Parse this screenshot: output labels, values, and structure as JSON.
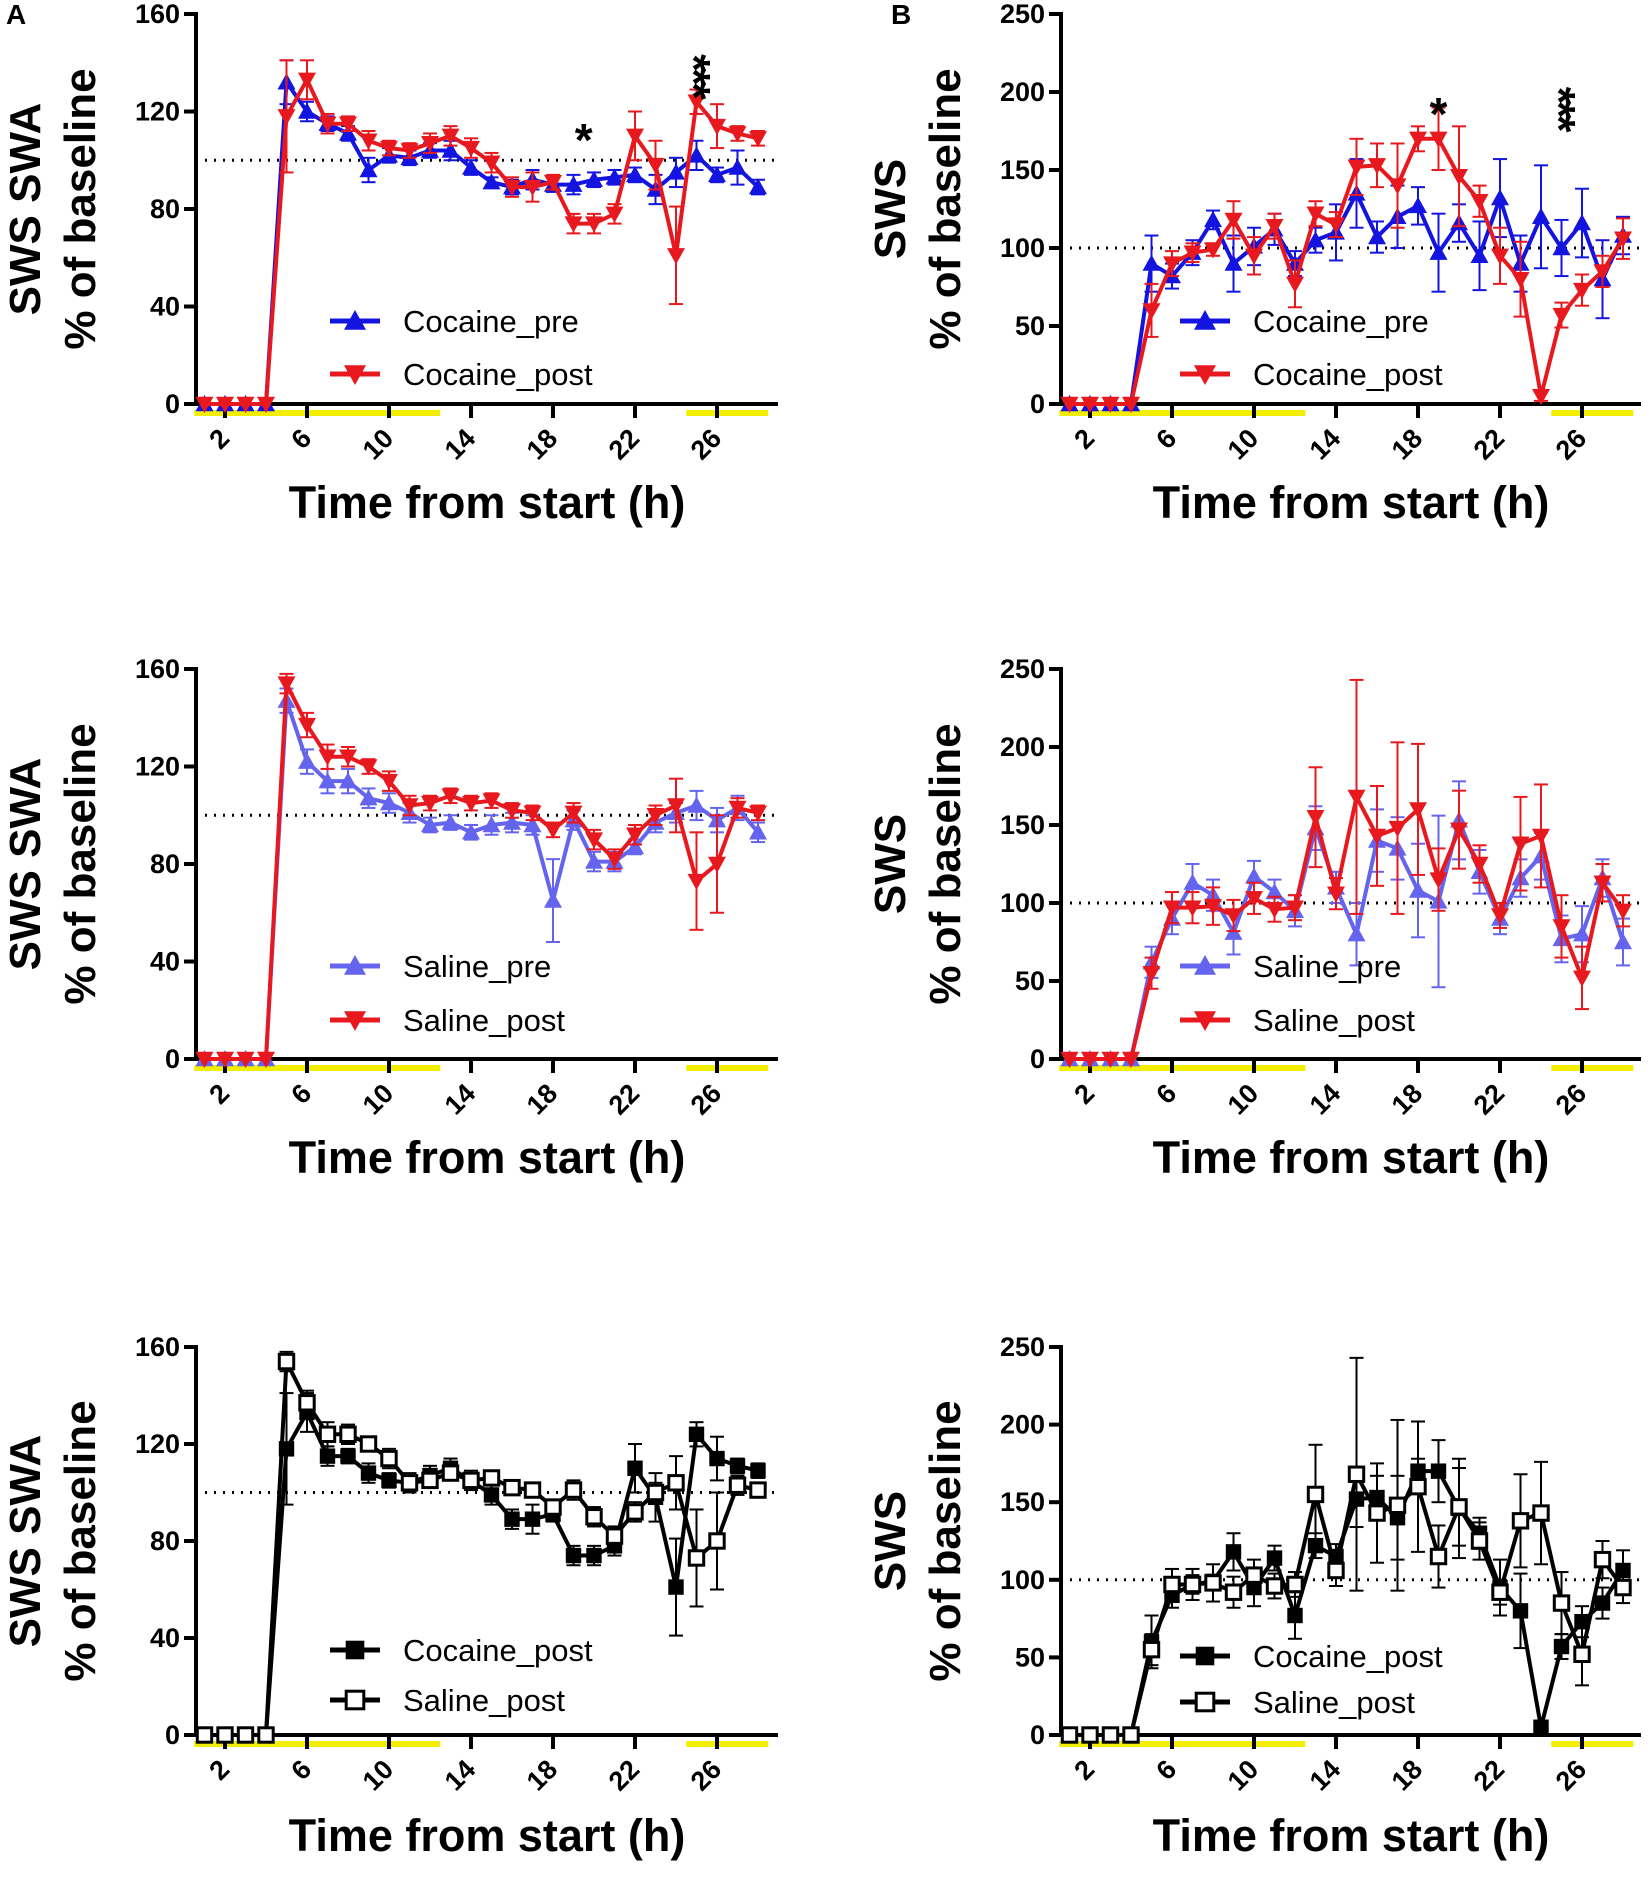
{
  "chart_data": [
    {
      "type": "line",
      "letter": "A",
      "xlabel": "Time from start (h)",
      "ylabel": [
        "SWS SWA",
        "% of baseline"
      ],
      "ylim": [
        0,
        160
      ],
      "yticks": [
        0,
        40,
        80,
        120,
        160
      ],
      "xticks": [
        2,
        6,
        10,
        14,
        18,
        22,
        26
      ],
      "reference_line": 100,
      "light_bars_hours": [
        [
          0.5,
          12.5
        ],
        [
          24.5,
          28.5
        ]
      ],
      "annotations": [
        {
          "text": "*",
          "hour": 19.5,
          "value": 114
        },
        {
          "text": "***",
          "hour": 24,
          "value": 135
        }
      ],
      "legend": "center-left",
      "series": [
        {
          "name": "Cocaine_pre",
          "color": "#1414e0",
          "marker": "triangle-up",
          "filled": true,
          "values": [
            0,
            0,
            0,
            0,
            132,
            120,
            115,
            111,
            96,
            102,
            101,
            104,
            104,
            97,
            91,
            89,
            92,
            90,
            90,
            92,
            93,
            94,
            88,
            95,
            102,
            94,
            97,
            89
          ],
          "err": [
            0,
            0,
            0,
            0,
            9,
            4,
            3,
            3,
            5,
            3,
            3,
            3,
            4,
            3,
            2,
            3,
            4,
            3,
            4,
            3,
            3,
            3,
            6,
            6,
            6,
            3,
            7,
            3
          ]
        },
        {
          "name": "Cocaine_post",
          "color": "#e8191e",
          "marker": "triangle-down",
          "filled": true,
          "values": [
            0,
            0,
            0,
            0,
            118,
            133,
            115,
            115,
            108,
            105,
            104,
            107,
            110,
            105,
            99,
            89,
            89,
            91,
            74,
            74,
            78,
            110,
            98,
            61,
            124,
            114,
            111,
            109
          ],
          "err": [
            0,
            0,
            0,
            0,
            23,
            8,
            4,
            3,
            4,
            3,
            3,
            4,
            4,
            4,
            4,
            4,
            6,
            3,
            4,
            4,
            4,
            10,
            10,
            20,
            5,
            9,
            3,
            3
          ]
        }
      ]
    },
    {
      "type": "line",
      "letter": "B",
      "xlabel": "Time from start (h)",
      "ylabel": [
        "SWS",
        "% of baseline"
      ],
      "ylim": [
        0,
        250
      ],
      "yticks": [
        0,
        50,
        100,
        150,
        200,
        250
      ],
      "xticks": [
        2,
        6,
        10,
        14,
        18,
        22,
        26
      ],
      "reference_line": 100,
      "light_bars_hours": [
        [
          0.5,
          12.5
        ],
        [
          24.5,
          28.5
        ]
      ],
      "annotations": [
        {
          "text": "*",
          "hour": 19,
          "value": 195
        },
        {
          "text": "***",
          "hour": 24,
          "value": 190
        }
      ],
      "legend": "center-left",
      "series": [
        {
          "name": "Cocaine_pre",
          "color": "#1414e0",
          "marker": "triangle-up",
          "filled": true,
          "values": [
            0,
            0,
            0,
            0,
            90,
            82,
            97,
            118,
            90,
            101,
            112,
            90,
            105,
            110,
            135,
            107,
            120,
            127,
            97,
            116,
            95,
            132,
            90,
            120,
            100,
            116,
            80,
            108
          ],
          "err": [
            0,
            0,
            0,
            0,
            18,
            8,
            8,
            6,
            18,
            12,
            10,
            8,
            8,
            18,
            22,
            10,
            20,
            12,
            25,
            12,
            22,
            25,
            18,
            33,
            18,
            22,
            25,
            12
          ]
        },
        {
          "name": "Cocaine_post",
          "color": "#e8191e",
          "marker": "triangle-down",
          "filled": true,
          "values": [
            0,
            0,
            0,
            0,
            60,
            90,
            97,
            99,
            118,
            95,
            114,
            77,
            122,
            115,
            152,
            153,
            140,
            170,
            170,
            146,
            130,
            95,
            80,
            5,
            57,
            73,
            85,
            106
          ],
          "err": [
            0,
            0,
            0,
            0,
            17,
            8,
            6,
            4,
            12,
            12,
            8,
            15,
            8,
            8,
            18,
            14,
            27,
            8,
            20,
            32,
            10,
            18,
            24,
            3,
            8,
            10,
            10,
            13
          ]
        }
      ]
    },
    {
      "type": "line",
      "letter": "",
      "xlabel": "Time from start (h)",
      "ylabel": [
        "SWS SWA",
        "% of baseline"
      ],
      "ylim": [
        0,
        160
      ],
      "yticks": [
        0,
        40,
        80,
        120,
        160
      ],
      "xticks": [
        2,
        6,
        10,
        14,
        18,
        22,
        26
      ],
      "reference_line": 100,
      "light_bars_hours": [
        [
          0.5,
          12.5
        ],
        [
          24.5,
          28.5
        ]
      ],
      "annotations": [],
      "legend": "center-left",
      "series": [
        {
          "name": "Saline_pre",
          "color": "#6464ee",
          "marker": "triangle-up",
          "filled": true,
          "values": [
            0,
            0,
            0,
            0,
            147,
            122,
            114,
            114,
            107,
            105,
            101,
            96,
            97,
            93,
            96,
            97,
            96,
            65,
            98,
            81,
            81,
            87,
            97,
            101,
            104,
            98,
            103,
            93
          ],
          "err": [
            0,
            0,
            0,
            0,
            5,
            5,
            5,
            5,
            4,
            4,
            4,
            3,
            3,
            3,
            4,
            4,
            4,
            17,
            4,
            4,
            4,
            3,
            4,
            4,
            6,
            5,
            5,
            4
          ]
        },
        {
          "name": "Saline_post",
          "color": "#e8191e",
          "marker": "triangle-down",
          "filled": true,
          "values": [
            0,
            0,
            0,
            0,
            154,
            137,
            124,
            124,
            120,
            114,
            104,
            105,
            108,
            105,
            106,
            102,
            101,
            94,
            101,
            90,
            82,
            92,
            100,
            104,
            73,
            80,
            103,
            101
          ],
          "err": [
            0,
            0,
            0,
            0,
            4,
            5,
            5,
            4,
            3,
            4,
            4,
            3,
            3,
            3,
            3,
            3,
            3,
            3,
            4,
            4,
            4,
            4,
            4,
            11,
            20,
            20,
            4,
            3
          ]
        }
      ]
    },
    {
      "type": "line",
      "letter": "",
      "xlabel": "Time from start (h)",
      "ylabel": [
        "SWS",
        "% of baseline"
      ],
      "ylim": [
        0,
        250
      ],
      "yticks": [
        0,
        50,
        100,
        150,
        200,
        250
      ],
      "xticks": [
        2,
        6,
        10,
        14,
        18,
        22,
        26
      ],
      "reference_line": 100,
      "light_bars_hours": [
        [
          0.5,
          12.5
        ],
        [
          24.5,
          28.5
        ]
      ],
      "annotations": [],
      "legend": "center-left",
      "series": [
        {
          "name": "Saline_pre",
          "color": "#6464ee",
          "marker": "triangle-up",
          "filled": true,
          "values": [
            0,
            0,
            0,
            0,
            62,
            90,
            113,
            105,
            81,
            117,
            107,
            95,
            148,
            110,
            80,
            140,
            135,
            108,
            101,
            153,
            120,
            90,
            116,
            130,
            77,
            80,
            116,
            75
          ],
          "err": [
            0,
            0,
            0,
            0,
            10,
            10,
            12,
            10,
            14,
            10,
            8,
            10,
            14,
            10,
            20,
            20,
            20,
            30,
            55,
            25,
            14,
            10,
            12,
            15,
            15,
            18,
            12,
            15
          ]
        },
        {
          "name": "Saline_post",
          "color": "#e8191e",
          "marker": "triangle-down",
          "filled": true,
          "values": [
            0,
            0,
            0,
            0,
            55,
            97,
            97,
            98,
            92,
            103,
            96,
            97,
            155,
            106,
            168,
            143,
            148,
            160,
            115,
            147,
            125,
            92,
            138,
            143,
            85,
            52,
            113,
            95
          ],
          "err": [
            0,
            0,
            0,
            0,
            10,
            10,
            10,
            12,
            10,
            10,
            8,
            8,
            32,
            10,
            75,
            32,
            55,
            42,
            20,
            25,
            12,
            8,
            30,
            33,
            20,
            20,
            12,
            10
          ]
        }
      ]
    },
    {
      "type": "line",
      "letter": "",
      "xlabel": "Time from start (h)",
      "ylabel": [
        "SWS SWA",
        "% of baseline"
      ],
      "ylim": [
        0,
        160
      ],
      "yticks": [
        0,
        40,
        80,
        120,
        160
      ],
      "xticks": [
        2,
        6,
        10,
        14,
        18,
        22,
        26
      ],
      "reference_line": 100,
      "light_bars_hours": [
        [
          0.5,
          12.5
        ],
        [
          24.5,
          28.5
        ]
      ],
      "annotations": [],
      "legend": "center-left",
      "series": [
        {
          "name": "Cocaine_post",
          "color": "#000000",
          "marker": "square",
          "filled": true,
          "values": [
            0,
            0,
            0,
            0,
            118,
            133,
            115,
            115,
            108,
            105,
            104,
            107,
            110,
            105,
            99,
            89,
            89,
            91,
            74,
            74,
            78,
            110,
            98,
            61,
            124,
            114,
            111,
            109
          ],
          "err": [
            0,
            0,
            0,
            0,
            23,
            8,
            4,
            3,
            4,
            3,
            3,
            4,
            4,
            4,
            4,
            4,
            6,
            3,
            4,
            4,
            4,
            10,
            10,
            20,
            5,
            9,
            3,
            3
          ]
        },
        {
          "name": "Saline_post",
          "color": "#000000",
          "marker": "square",
          "filled": false,
          "values": [
            0,
            0,
            0,
            0,
            154,
            137,
            124,
            124,
            120,
            114,
            104,
            105,
            108,
            105,
            106,
            102,
            101,
            94,
            101,
            90,
            82,
            92,
            100,
            104,
            73,
            80,
            103,
            101
          ],
          "err": [
            0,
            0,
            0,
            0,
            4,
            5,
            5,
            4,
            3,
            4,
            4,
            3,
            3,
            3,
            3,
            3,
            3,
            3,
            4,
            4,
            4,
            4,
            4,
            11,
            20,
            20,
            4,
            3
          ]
        }
      ]
    },
    {
      "type": "line",
      "letter": "",
      "xlabel": "Time from start (h)",
      "ylabel": [
        "SWS",
        "% of baseline"
      ],
      "ylim": [
        0,
        250
      ],
      "yticks": [
        0,
        50,
        100,
        150,
        200,
        250
      ],
      "xticks": [
        2,
        6,
        10,
        14,
        18,
        22,
        26
      ],
      "reference_line": 100,
      "light_bars_hours": [
        [
          0.5,
          12.5
        ],
        [
          24.5,
          28.5
        ]
      ],
      "annotations": [],
      "legend": "center-left",
      "series": [
        {
          "name": "Cocaine_post",
          "color": "#000000",
          "marker": "square",
          "filled": true,
          "values": [
            0,
            0,
            0,
            0,
            60,
            90,
            97,
            99,
            118,
            95,
            114,
            77,
            122,
            115,
            152,
            153,
            140,
            170,
            170,
            146,
            130,
            95,
            80,
            5,
            57,
            73,
            85,
            106
          ],
          "err": [
            0,
            0,
            0,
            0,
            17,
            8,
            6,
            4,
            12,
            12,
            8,
            15,
            8,
            8,
            18,
            14,
            27,
            8,
            20,
            32,
            10,
            18,
            24,
            3,
            8,
            10,
            10,
            13
          ]
        },
        {
          "name": "Saline_post",
          "color": "#000000",
          "marker": "square",
          "filled": false,
          "values": [
            0,
            0,
            0,
            0,
            55,
            97,
            97,
            98,
            92,
            103,
            96,
            97,
            155,
            106,
            168,
            143,
            148,
            160,
            115,
            147,
            125,
            92,
            138,
            143,
            85,
            52,
            113,
            95
          ],
          "err": [
            0,
            0,
            0,
            0,
            10,
            10,
            10,
            12,
            10,
            10,
            8,
            8,
            32,
            10,
            75,
            32,
            55,
            42,
            20,
            25,
            12,
            8,
            30,
            33,
            20,
            20,
            12,
            10
          ]
        }
      ]
    }
  ],
  "colors": {
    "light_bar": "#f2ee00",
    "axis": "#000000"
  }
}
